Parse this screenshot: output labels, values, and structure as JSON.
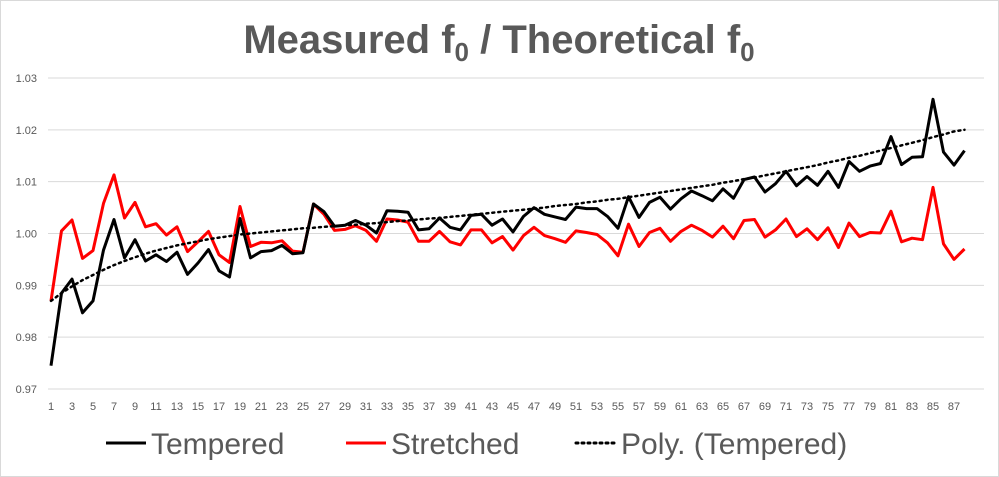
{
  "chart_data": {
    "type": "line",
    "title": "Measured f",
    "title_sub": "0",
    "title_mid": " / Theoretical f",
    "title_sub2": "0",
    "ylim": [
      0.97,
      1.03
    ],
    "yticks": [
      "0.97",
      "0.98",
      "0.99",
      "1.00",
      "1.01",
      "1.02",
      "1.03"
    ],
    "x": [
      1,
      2,
      3,
      4,
      5,
      6,
      7,
      8,
      9,
      10,
      11,
      12,
      13,
      14,
      15,
      16,
      17,
      18,
      19,
      20,
      21,
      22,
      23,
      24,
      25,
      26,
      27,
      28,
      29,
      30,
      31,
      32,
      33,
      34,
      35,
      36,
      37,
      38,
      39,
      40,
      41,
      42,
      43,
      44,
      45,
      46,
      47,
      48,
      49,
      50,
      51,
      52,
      53,
      54,
      55,
      56,
      57,
      58,
      59,
      60,
      61,
      62,
      63,
      64,
      65,
      66,
      67,
      68,
      69,
      70,
      71,
      72,
      73,
      74,
      75,
      76,
      77,
      78,
      79,
      80,
      81,
      82,
      83,
      84,
      85,
      86,
      87,
      88
    ],
    "xtick_labels": [
      "1",
      "3",
      "5",
      "7",
      "9",
      "11",
      "13",
      "15",
      "17",
      "19",
      "21",
      "23",
      "25",
      "27",
      "29",
      "31",
      "33",
      "35",
      "37",
      "39",
      "41",
      "43",
      "45",
      "47",
      "49",
      "51",
      "53",
      "55",
      "57",
      "59",
      "61",
      "63",
      "65",
      "67",
      "69",
      "71",
      "73",
      "75",
      "77",
      "79",
      "81",
      "83",
      "85",
      "87"
    ],
    "grid": true,
    "legend_position": "bottom",
    "series": [
      {
        "name": "Tempered",
        "color": "#000000",
        "style": "solid",
        "values": [
          0.9745,
          0.9885,
          0.9912,
          0.9847,
          0.987,
          0.9968,
          1.0027,
          0.9953,
          0.9988,
          0.9947,
          0.9959,
          0.9946,
          0.9964,
          0.9921,
          0.9943,
          0.9969,
          0.9928,
          0.9916,
          1.0029,
          0.9953,
          0.9965,
          0.9967,
          0.9977,
          0.9961,
          0.9963,
          1.0057,
          1.0042,
          1.0014,
          1.0016,
          1.0025,
          1.0016,
          1.0001,
          1.0044,
          1.0043,
          1.0041,
          1.0007,
          1.0009,
          1.003,
          1.0012,
          1.0007,
          1.0035,
          1.0037,
          1.0016,
          1.0028,
          1.0003,
          1.0033,
          1.005,
          1.0037,
          1.0032,
          1.0027,
          1.0051,
          1.0048,
          1.0048,
          1.0033,
          1.001,
          1.0071,
          1.0031,
          1.006,
          1.007,
          1.0047,
          1.0067,
          1.0082,
          1.0073,
          1.0063,
          1.0086,
          1.0068,
          1.0104,
          1.0109,
          1.008,
          1.0096,
          1.012,
          1.0092,
          1.011,
          1.0093,
          1.012,
          1.0089,
          1.0139,
          1.012,
          1.013,
          1.0135,
          1.0187,
          1.0133,
          1.0147,
          1.0148,
          1.0259,
          1.0157,
          1.0132,
          1.016
        ]
      },
      {
        "name": "Stretched",
        "color": "#ff0000",
        "style": "solid",
        "values": [
          0.987,
          1.0005,
          1.0026,
          0.9952,
          0.9967,
          1.0058,
          1.0113,
          1.003,
          1.006,
          1.0013,
          1.0019,
          0.9997,
          1.0013,
          0.9965,
          0.9984,
          1.0004,
          0.9959,
          0.9944,
          1.0052,
          0.9975,
          0.9983,
          0.9982,
          0.9986,
          0.9966,
          0.9964,
          1.0057,
          1.0037,
          1.0006,
          1.0008,
          1.0015,
          1.0006,
          0.9985,
          1.0028,
          1.0026,
          1.0022,
          0.9985,
          0.9985,
          1.0004,
          0.9984,
          0.9978,
          1.0007,
          1.0007,
          0.9982,
          0.9994,
          0.9968,
          0.9996,
          1.0012,
          0.9996,
          0.999,
          0.9983,
          1.0005,
          1.0002,
          0.9998,
          0.9982,
          0.9957,
          1.0018,
          0.9975,
          1.0002,
          1.001,
          0.9985,
          1.0004,
          1.0016,
          1.0006,
          0.9993,
          1.0014,
          0.999,
          1.0025,
          1.0027,
          0.9993,
          1.0007,
          1.0028,
          0.9994,
          1.0009,
          0.9988,
          1.0011,
          0.9973,
          1.002,
          0.9994,
          1.0002,
          1.0001,
          1.0043,
          0.9984,
          0.9991,
          0.9988,
          1.0089,
          0.998,
          0.995,
          0.997
        ]
      },
      {
        "name": "Poly. (Tempered)",
        "color": "#000000",
        "style": "dotted",
        "values": [
          0.987,
          0.9885,
          0.9898,
          0.991,
          0.992,
          0.993,
          0.9939,
          0.9947,
          0.9954,
          0.9961,
          0.9967,
          0.9972,
          0.9977,
          0.9981,
          0.9985,
          0.9989,
          0.9992,
          0.9995,
          0.9998,
          1.0,
          1.0002,
          1.0004,
          1.0006,
          1.0008,
          1.001,
          1.0011,
          1.0013,
          1.0014,
          1.0016,
          1.0017,
          1.0019,
          1.002,
          1.0022,
          1.0024,
          1.0025,
          1.0027,
          1.0029,
          1.003,
          1.0032,
          1.0034,
          1.0036,
          1.0038,
          1.004,
          1.0042,
          1.0044,
          1.0046,
          1.0048,
          1.005,
          1.0053,
          1.0055,
          1.0057,
          1.006,
          1.0062,
          1.0065,
          1.0067,
          1.007,
          1.0073,
          1.0076,
          1.0079,
          1.0082,
          1.0085,
          1.0088,
          1.0091,
          1.0094,
          1.0098,
          1.0101,
          1.0105,
          1.0108,
          1.0112,
          1.0116,
          1.012,
          1.0124,
          1.0128,
          1.0132,
          1.0137,
          1.0141,
          1.0146,
          1.015,
          1.0155,
          1.016,
          1.0165,
          1.017,
          1.0175,
          1.018,
          1.0186,
          1.0191,
          1.0197,
          1.02
        ]
      }
    ]
  }
}
